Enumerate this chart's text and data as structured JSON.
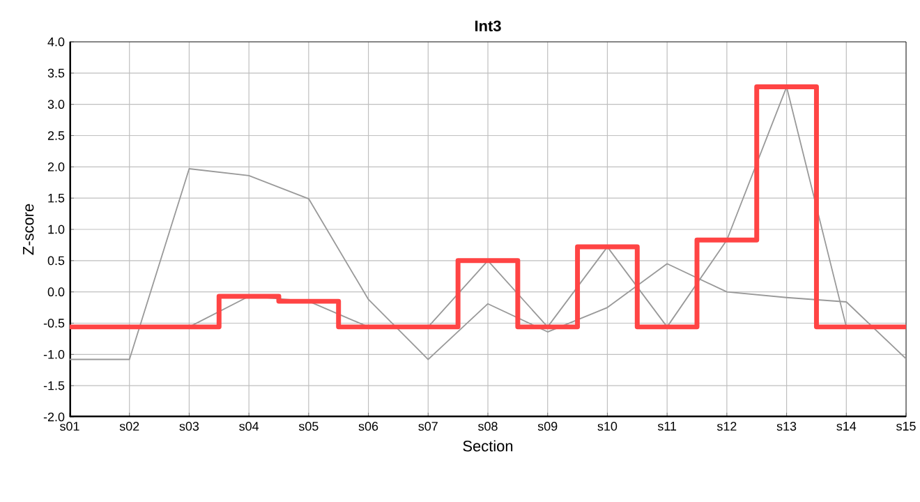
{
  "chart_data": {
    "type": "line",
    "title": "Int3",
    "xlabel": "Section",
    "ylabel": "Z-score",
    "categories": [
      "s01",
      "s02",
      "s03",
      "s04",
      "s05",
      "s06",
      "s07",
      "s08",
      "s09",
      "s10",
      "s11",
      "s12",
      "s13",
      "s14",
      "s15"
    ],
    "series": [
      {
        "color": "#999999",
        "values": [
          -1.08,
          -1.08,
          1.97,
          1.86,
          1.49,
          -0.12,
          -1.08,
          -0.19,
          -0.64,
          -0.25,
          0.45,
          0.0,
          -0.09,
          -0.16,
          -1.07
        ]
      },
      {
        "color": "#999999",
        "values": [
          -0.56,
          -0.56,
          -0.56,
          -0.07,
          -0.15,
          -0.56,
          -0.56,
          0.5,
          -0.56,
          0.72,
          -0.56,
          0.83,
          3.28,
          -0.56,
          -0.56
        ]
      },
      {
        "type": "step",
        "color": "#ff4444",
        "values": [
          -0.56,
          -0.56,
          -0.56,
          -0.07,
          -0.15,
          -0.56,
          -0.56,
          0.5,
          -0.56,
          0.72,
          -0.56,
          0.83,
          3.28,
          -0.56,
          -0.56
        ]
      }
    ],
    "ylim": [
      -2.0,
      4.0
    ],
    "yticks": [
      {
        "value": -2.0,
        "label": "-2.0"
      },
      {
        "value": -1.5,
        "label": "-1.5"
      },
      {
        "value": -1.0,
        "label": "-1.0"
      },
      {
        "value": -0.5,
        "label": "-0.5"
      },
      {
        "value": 0.0,
        "label": "0.0"
      },
      {
        "value": 0.5,
        "label": "0.5"
      },
      {
        "value": 1.0,
        "label": "1.0"
      },
      {
        "value": 1.5,
        "label": "1.5"
      },
      {
        "value": 2.0,
        "label": "2.0"
      },
      {
        "value": 2.5,
        "label": "2.5"
      },
      {
        "value": 3.0,
        "label": "3.0"
      },
      {
        "value": 3.5,
        "label": "3.5"
      },
      {
        "value": 4.0,
        "label": "4.0"
      }
    ],
    "grid": true,
    "marker": "none",
    "line_style": "solid"
  }
}
